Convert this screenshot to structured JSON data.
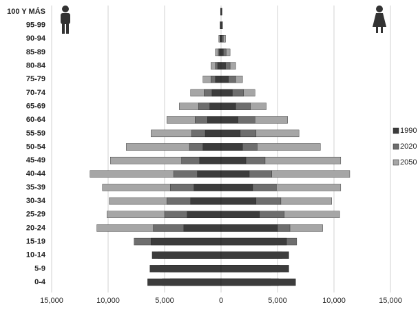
{
  "chart_data": {
    "type": "pyramid",
    "categories": [
      "100 Y MÁS",
      "95-99",
      "90-94",
      "85-89",
      "80-84",
      "75-79",
      "70-74",
      "65-69",
      "60-64",
      "55-59",
      "50-54",
      "45-49",
      "40-44",
      "35-39",
      "30-34",
      "25-29",
      "20-24",
      "15-19",
      "10-14",
      "5-9",
      "0-4"
    ],
    "series": [
      {
        "name": "2050",
        "color": "#a6a6a6",
        "male": [
          -50,
          -100,
          -200,
          -500,
          -900,
          -1600,
          -2700,
          -3700,
          -4800,
          -6200,
          -8400,
          -9800,
          -11600,
          -10500,
          -9900,
          -10100,
          -11000,
          -5000,
          -4800,
          -4600,
          -4500
        ],
        "female": [
          100,
          150,
          400,
          800,
          1300,
          1900,
          3000,
          4000,
          5900,
          6900,
          8800,
          10600,
          11400,
          10600,
          9800,
          10500,
          9000,
          4800,
          4700,
          4500,
          4400
        ]
      },
      {
        "name": "2020",
        "color": "#6e6e6e",
        "male": [
          -20,
          -50,
          -100,
          -250,
          -500,
          -900,
          -1500,
          -2000,
          -2300,
          -2600,
          -2800,
          -3500,
          -4200,
          -4500,
          -4800,
          -5000,
          -6000,
          -7700,
          -5600,
          -5400,
          -5200
        ],
        "female": [
          40,
          80,
          200,
          450,
          800,
          1300,
          2000,
          2600,
          3000,
          3100,
          3200,
          3900,
          4500,
          4900,
          5300,
          5600,
          6100,
          6700,
          5400,
          5200,
          5100
        ]
      },
      {
        "name": "1990",
        "color": "#3c3c3c",
        "male": [
          -10,
          -20,
          -50,
          -150,
          -300,
          -500,
          -800,
          -1000,
          -1200,
          -1400,
          -1600,
          -1900,
          -2100,
          -2400,
          -2700,
          -3000,
          -3300,
          -6200,
          -6100,
          -6300,
          -6500
        ],
        "female": [
          20,
          40,
          80,
          200,
          400,
          650,
          1000,
          1300,
          1500,
          1700,
          1900,
          2200,
          2500,
          2800,
          3100,
          3400,
          5000,
          5800,
          6000,
          6000,
          6600
        ]
      }
    ],
    "xlim": [
      -15000,
      15000
    ],
    "xticks": [
      {
        "value": -15000,
        "label": "15,000"
      },
      {
        "value": -10000,
        "label": "10,000"
      },
      {
        "value": -5000,
        "label": "5,000"
      },
      0,
      {
        "value": 5000,
        "label": "5,000"
      },
      {
        "value": 10000,
        "label": "10,000"
      },
      {
        "value": 15000,
        "label": "15,000"
      }
    ],
    "grid": true
  }
}
